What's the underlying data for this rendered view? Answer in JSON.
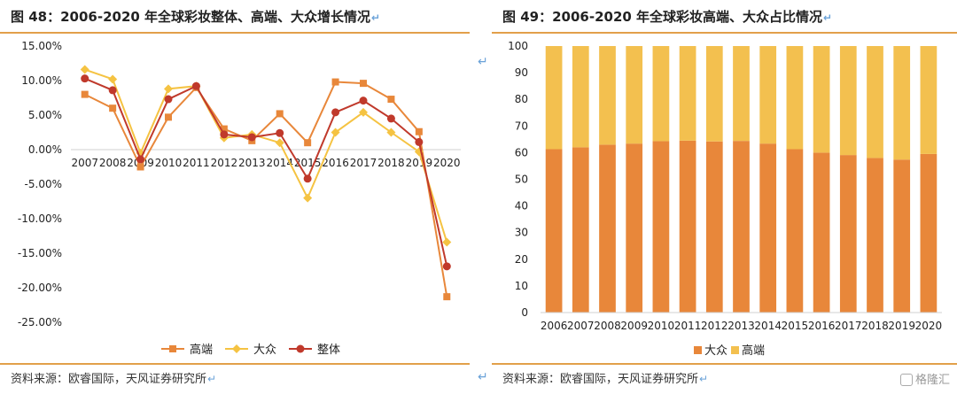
{
  "left": {
    "title": "图 48：2006-2020 年全球彩妆整体、高端、大众增长情况",
    "source": "资料来源：欧睿国际，天风证券研究所",
    "colors": {
      "高端": "#e8873a",
      "大众": "#f5c342",
      "整体": "#c0392b"
    }
  },
  "right": {
    "title": "图 49：2006-2020 年全球彩妆高端、大众占比情况",
    "source": "资料来源：欧睿国际，天风证券研究所",
    "colors": {
      "大众": "#e8873a",
      "高端": "#f3c04f"
    }
  },
  "watermark": "格隆汇",
  "chart_data": [
    {
      "type": "line",
      "x": [
        "2007",
        "2008",
        "2009",
        "2010",
        "2011",
        "2012",
        "2013",
        "2014",
        "2015",
        "2016",
        "2017",
        "2018",
        "2019",
        "2020"
      ],
      "ylim": [
        -25,
        15
      ],
      "y_ticks": [
        "15.00%",
        "10.00%",
        "5.00%",
        "0.00%",
        "-5.00%",
        "-10.00%",
        "-15.00%",
        "-20.00%",
        "-25.00%"
      ],
      "legend_position": "bottom",
      "series": [
        {
          "name": "高端",
          "marker": "square",
          "values": [
            8.0,
            6.0,
            -2.5,
            4.7,
            9.0,
            3.0,
            1.3,
            5.2,
            1.0,
            9.8,
            9.6,
            7.3,
            2.6,
            -21.3
          ]
        },
        {
          "name": "大众",
          "marker": "diamond",
          "values": [
            11.6,
            10.2,
            -0.5,
            8.8,
            9.2,
            1.7,
            2.2,
            1.0,
            -7.0,
            2.5,
            5.4,
            2.5,
            -0.3,
            -13.4
          ]
        },
        {
          "name": "整体",
          "marker": "circle",
          "values": [
            10.3,
            8.6,
            -1.4,
            7.3,
            9.2,
            2.2,
            1.8,
            2.4,
            -4.2,
            5.4,
            7.1,
            4.5,
            1.1,
            -16.9
          ]
        }
      ]
    },
    {
      "type": "bar",
      "stacked": true,
      "categories": [
        "2006",
        "2007",
        "2008",
        "2009",
        "2010",
        "2011",
        "2012",
        "2013",
        "2014",
        "2015",
        "2016",
        "2017",
        "2018",
        "2019",
        "2020"
      ],
      "ylim": [
        0,
        100
      ],
      "y_ticks": [
        "0",
        "10",
        "20",
        "30",
        "40",
        "50",
        "60",
        "70",
        "80",
        "90",
        "100"
      ],
      "legend_position": "bottom",
      "series": [
        {
          "name": "大众",
          "values": [
            61.3,
            62.0,
            63.0,
            63.4,
            64.3,
            64.5,
            64.2,
            64.4,
            63.4,
            61.3,
            60.0,
            59.1,
            58.0,
            57.4,
            59.5
          ]
        },
        {
          "name": "高端",
          "values": [
            38.7,
            38.0,
            37.0,
            36.6,
            35.7,
            35.5,
            35.8,
            35.6,
            36.6,
            38.7,
            40.0,
            40.9,
            42.0,
            42.6,
            40.5
          ]
        }
      ]
    }
  ]
}
